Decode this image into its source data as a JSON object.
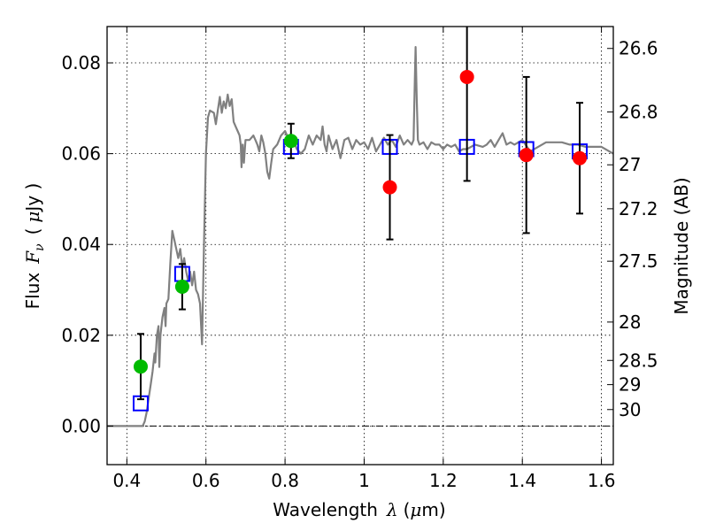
{
  "chart_data": {
    "type": "scatter",
    "xlabel": {
      "text": "Wavelength",
      "symbol": "λ",
      "unit_open": "(",
      "unit_mu": "μ",
      "unit_rest": "m)"
    },
    "ylabel": {
      "text": "Flux",
      "symbol": "F",
      "sub": "ν",
      "unit_open": "(",
      "unit_mu": "μ",
      "unit_rest": "Jy )"
    },
    "y2label": "Magnitude (AB)",
    "xlim": [
      0.35,
      1.63
    ],
    "ylim": [
      -0.0085,
      0.088
    ],
    "grid": true,
    "x_ticks": [
      {
        "value": 0.4,
        "label": "0.4"
      },
      {
        "value": 0.6,
        "label": "0.6"
      },
      {
        "value": 0.8,
        "label": "0.8"
      },
      {
        "value": 1.0,
        "label": "1"
      },
      {
        "value": 1.2,
        "label": "1.2"
      },
      {
        "value": 1.4,
        "label": "1.4"
      },
      {
        "value": 1.6,
        "label": "1.6"
      }
    ],
    "y_ticks": [
      {
        "value": 0.0,
        "label": "0.00"
      },
      {
        "value": 0.02,
        "label": "0.02"
      },
      {
        "value": 0.04,
        "label": "0.04"
      },
      {
        "value": 0.06,
        "label": "0.06"
      },
      {
        "value": 0.08,
        "label": "0.08"
      }
    ],
    "mag_ticks": [
      {
        "value": 26.6,
        "label": "26.6"
      },
      {
        "value": 26.8,
        "label": "26.8"
      },
      {
        "value": 27.0,
        "label": "27"
      },
      {
        "value": 27.2,
        "label": "27.2"
      },
      {
        "value": 27.5,
        "label": "27.5"
      },
      {
        "value": 28.0,
        "label": "28"
      },
      {
        "value": 28.5,
        "label": "28.5"
      },
      {
        "value": 29.0,
        "label": "29"
      },
      {
        "value": 30.0,
        "label": "30"
      }
    ],
    "template_spectrum": {
      "color": "#808080",
      "points": [
        [
          0.35,
          0.0
        ],
        [
          0.44,
          0.0
        ],
        [
          0.445,
          0.001
        ],
        [
          0.45,
          0.003
        ],
        [
          0.455,
          0.006
        ],
        [
          0.46,
          0.009
        ],
        [
          0.465,
          0.012
        ],
        [
          0.47,
          0.016
        ],
        [
          0.472,
          0.014
        ],
        [
          0.476,
          0.02
        ],
        [
          0.48,
          0.022
        ],
        [
          0.482,
          0.013
        ],
        [
          0.485,
          0.02
        ],
        [
          0.49,
          0.024
        ],
        [
          0.495,
          0.026
        ],
        [
          0.498,
          0.022
        ],
        [
          0.5,
          0.027
        ],
        [
          0.505,
          0.028
        ],
        [
          0.51,
          0.036
        ],
        [
          0.515,
          0.043
        ],
        [
          0.52,
          0.041
        ],
        [
          0.525,
          0.039
        ],
        [
          0.53,
          0.037
        ],
        [
          0.535,
          0.039
        ],
        [
          0.54,
          0.035
        ],
        [
          0.545,
          0.037
        ],
        [
          0.55,
          0.034
        ],
        [
          0.555,
          0.032
        ],
        [
          0.56,
          0.034
        ],
        [
          0.565,
          0.031
        ],
        [
          0.57,
          0.034
        ],
        [
          0.575,
          0.03
        ],
        [
          0.58,
          0.029
        ],
        [
          0.585,
          0.027
        ],
        [
          0.59,
          0.018
        ],
        [
          0.595,
          0.04
        ],
        [
          0.6,
          0.06
        ],
        [
          0.605,
          0.068
        ],
        [
          0.61,
          0.0695
        ],
        [
          0.62,
          0.069
        ],
        [
          0.625,
          0.0665
        ],
        [
          0.63,
          0.0695
        ],
        [
          0.635,
          0.0725
        ],
        [
          0.64,
          0.069
        ],
        [
          0.645,
          0.0715
        ],
        [
          0.65,
          0.07
        ],
        [
          0.655,
          0.073
        ],
        [
          0.66,
          0.0705
        ],
        [
          0.665,
          0.072
        ],
        [
          0.67,
          0.067
        ],
        [
          0.675,
          0.066
        ],
        [
          0.68,
          0.065
        ],
        [
          0.685,
          0.064
        ],
        [
          0.688,
          0.062
        ],
        [
          0.69,
          0.057
        ],
        [
          0.693,
          0.062
        ],
        [
          0.696,
          0.058
        ],
        [
          0.7,
          0.063
        ],
        [
          0.71,
          0.063
        ],
        [
          0.72,
          0.064
        ],
        [
          0.725,
          0.063
        ],
        [
          0.73,
          0.062
        ],
        [
          0.735,
          0.0605
        ],
        [
          0.74,
          0.064
        ],
        [
          0.745,
          0.0625
        ],
        [
          0.75,
          0.06
        ],
        [
          0.755,
          0.056
        ],
        [
          0.76,
          0.0545
        ],
        [
          0.765,
          0.058
        ],
        [
          0.77,
          0.061
        ],
        [
          0.78,
          0.062
        ],
        [
          0.79,
          0.064
        ],
        [
          0.8,
          0.065
        ],
        [
          0.81,
          0.063
        ],
        [
          0.82,
          0.063
        ],
        [
          0.83,
          0.061
        ],
        [
          0.84,
          0.06
        ],
        [
          0.85,
          0.061
        ],
        [
          0.86,
          0.064
        ],
        [
          0.87,
          0.062
        ],
        [
          0.88,
          0.064
        ],
        [
          0.89,
          0.063
        ],
        [
          0.895,
          0.066
        ],
        [
          0.9,
          0.062
        ],
        [
          0.905,
          0.0605
        ],
        [
          0.91,
          0.064
        ],
        [
          0.92,
          0.061
        ],
        [
          0.93,
          0.063
        ],
        [
          0.94,
          0.059
        ],
        [
          0.95,
          0.063
        ],
        [
          0.96,
          0.0635
        ],
        [
          0.97,
          0.061
        ],
        [
          0.98,
          0.063
        ],
        [
          0.99,
          0.062
        ],
        [
          1.0,
          0.0625
        ],
        [
          1.01,
          0.061
        ],
        [
          1.02,
          0.0635
        ],
        [
          1.03,
          0.0605
        ],
        [
          1.04,
          0.062
        ],
        [
          1.05,
          0.0635
        ],
        [
          1.06,
          0.062
        ],
        [
          1.07,
          0.063
        ],
        [
          1.08,
          0.0615
        ],
        [
          1.09,
          0.064
        ],
        [
          1.1,
          0.062
        ],
        [
          1.11,
          0.063
        ],
        [
          1.12,
          0.062
        ],
        [
          1.125,
          0.063
        ],
        [
          1.128,
          0.076
        ],
        [
          1.13,
          0.0835
        ],
        [
          1.133,
          0.072
        ],
        [
          1.136,
          0.063
        ],
        [
          1.14,
          0.062
        ],
        [
          1.15,
          0.0625
        ],
        [
          1.16,
          0.061
        ],
        [
          1.17,
          0.0625
        ],
        [
          1.18,
          0.062
        ],
        [
          1.19,
          0.062
        ],
        [
          1.2,
          0.061
        ],
        [
          1.21,
          0.062
        ],
        [
          1.22,
          0.0615
        ],
        [
          1.23,
          0.062
        ],
        [
          1.24,
          0.0605
        ],
        [
          1.25,
          0.061
        ],
        [
          1.26,
          0.061
        ],
        [
          1.28,
          0.062
        ],
        [
          1.3,
          0.0615
        ],
        [
          1.31,
          0.062
        ],
        [
          1.32,
          0.063
        ],
        [
          1.33,
          0.0615
        ],
        [
          1.34,
          0.063
        ],
        [
          1.35,
          0.0645
        ],
        [
          1.36,
          0.062
        ],
        [
          1.37,
          0.0625
        ],
        [
          1.38,
          0.062
        ],
        [
          1.4,
          0.063
        ],
        [
          1.42,
          0.0605
        ],
        [
          1.44,
          0.0615
        ],
        [
          1.46,
          0.0625
        ],
        [
          1.48,
          0.0625
        ],
        [
          1.5,
          0.0625
        ],
        [
          1.52,
          0.062
        ],
        [
          1.54,
          0.062
        ],
        [
          1.56,
          0.0615
        ],
        [
          1.58,
          0.0615
        ],
        [
          1.6,
          0.0615
        ],
        [
          1.62,
          0.0605
        ],
        [
          1.63,
          0.06
        ]
      ]
    },
    "model_photometry": {
      "marker": "open-square",
      "color": "#0000ff",
      "points": [
        [
          0.435,
          0.005
        ],
        [
          0.54,
          0.0335
        ],
        [
          0.815,
          0.0615
        ],
        [
          1.065,
          0.0615
        ],
        [
          1.26,
          0.0615
        ],
        [
          1.41,
          0.061
        ],
        [
          1.545,
          0.0605
        ]
      ]
    },
    "observed_optical": {
      "marker": "filled-circle",
      "color": "#00bb00",
      "points": [
        {
          "x": 0.435,
          "y": 0.0131,
          "err": 0.0072
        },
        {
          "x": 0.54,
          "y": 0.0307,
          "err": 0.005
        },
        {
          "x": 0.815,
          "y": 0.0628,
          "err": 0.0038
        }
      ]
    },
    "observed_nir": {
      "marker": "filled-circle",
      "color": "#ff0000",
      "points": [
        {
          "x": 1.065,
          "y": 0.0526,
          "err": 0.0115
        },
        {
          "x": 1.26,
          "y": 0.0769,
          "err": 0.0229
        },
        {
          "x": 1.41,
          "y": 0.0597,
          "err": 0.0172
        },
        {
          "x": 1.545,
          "y": 0.059,
          "err": 0.0122
        }
      ]
    }
  }
}
